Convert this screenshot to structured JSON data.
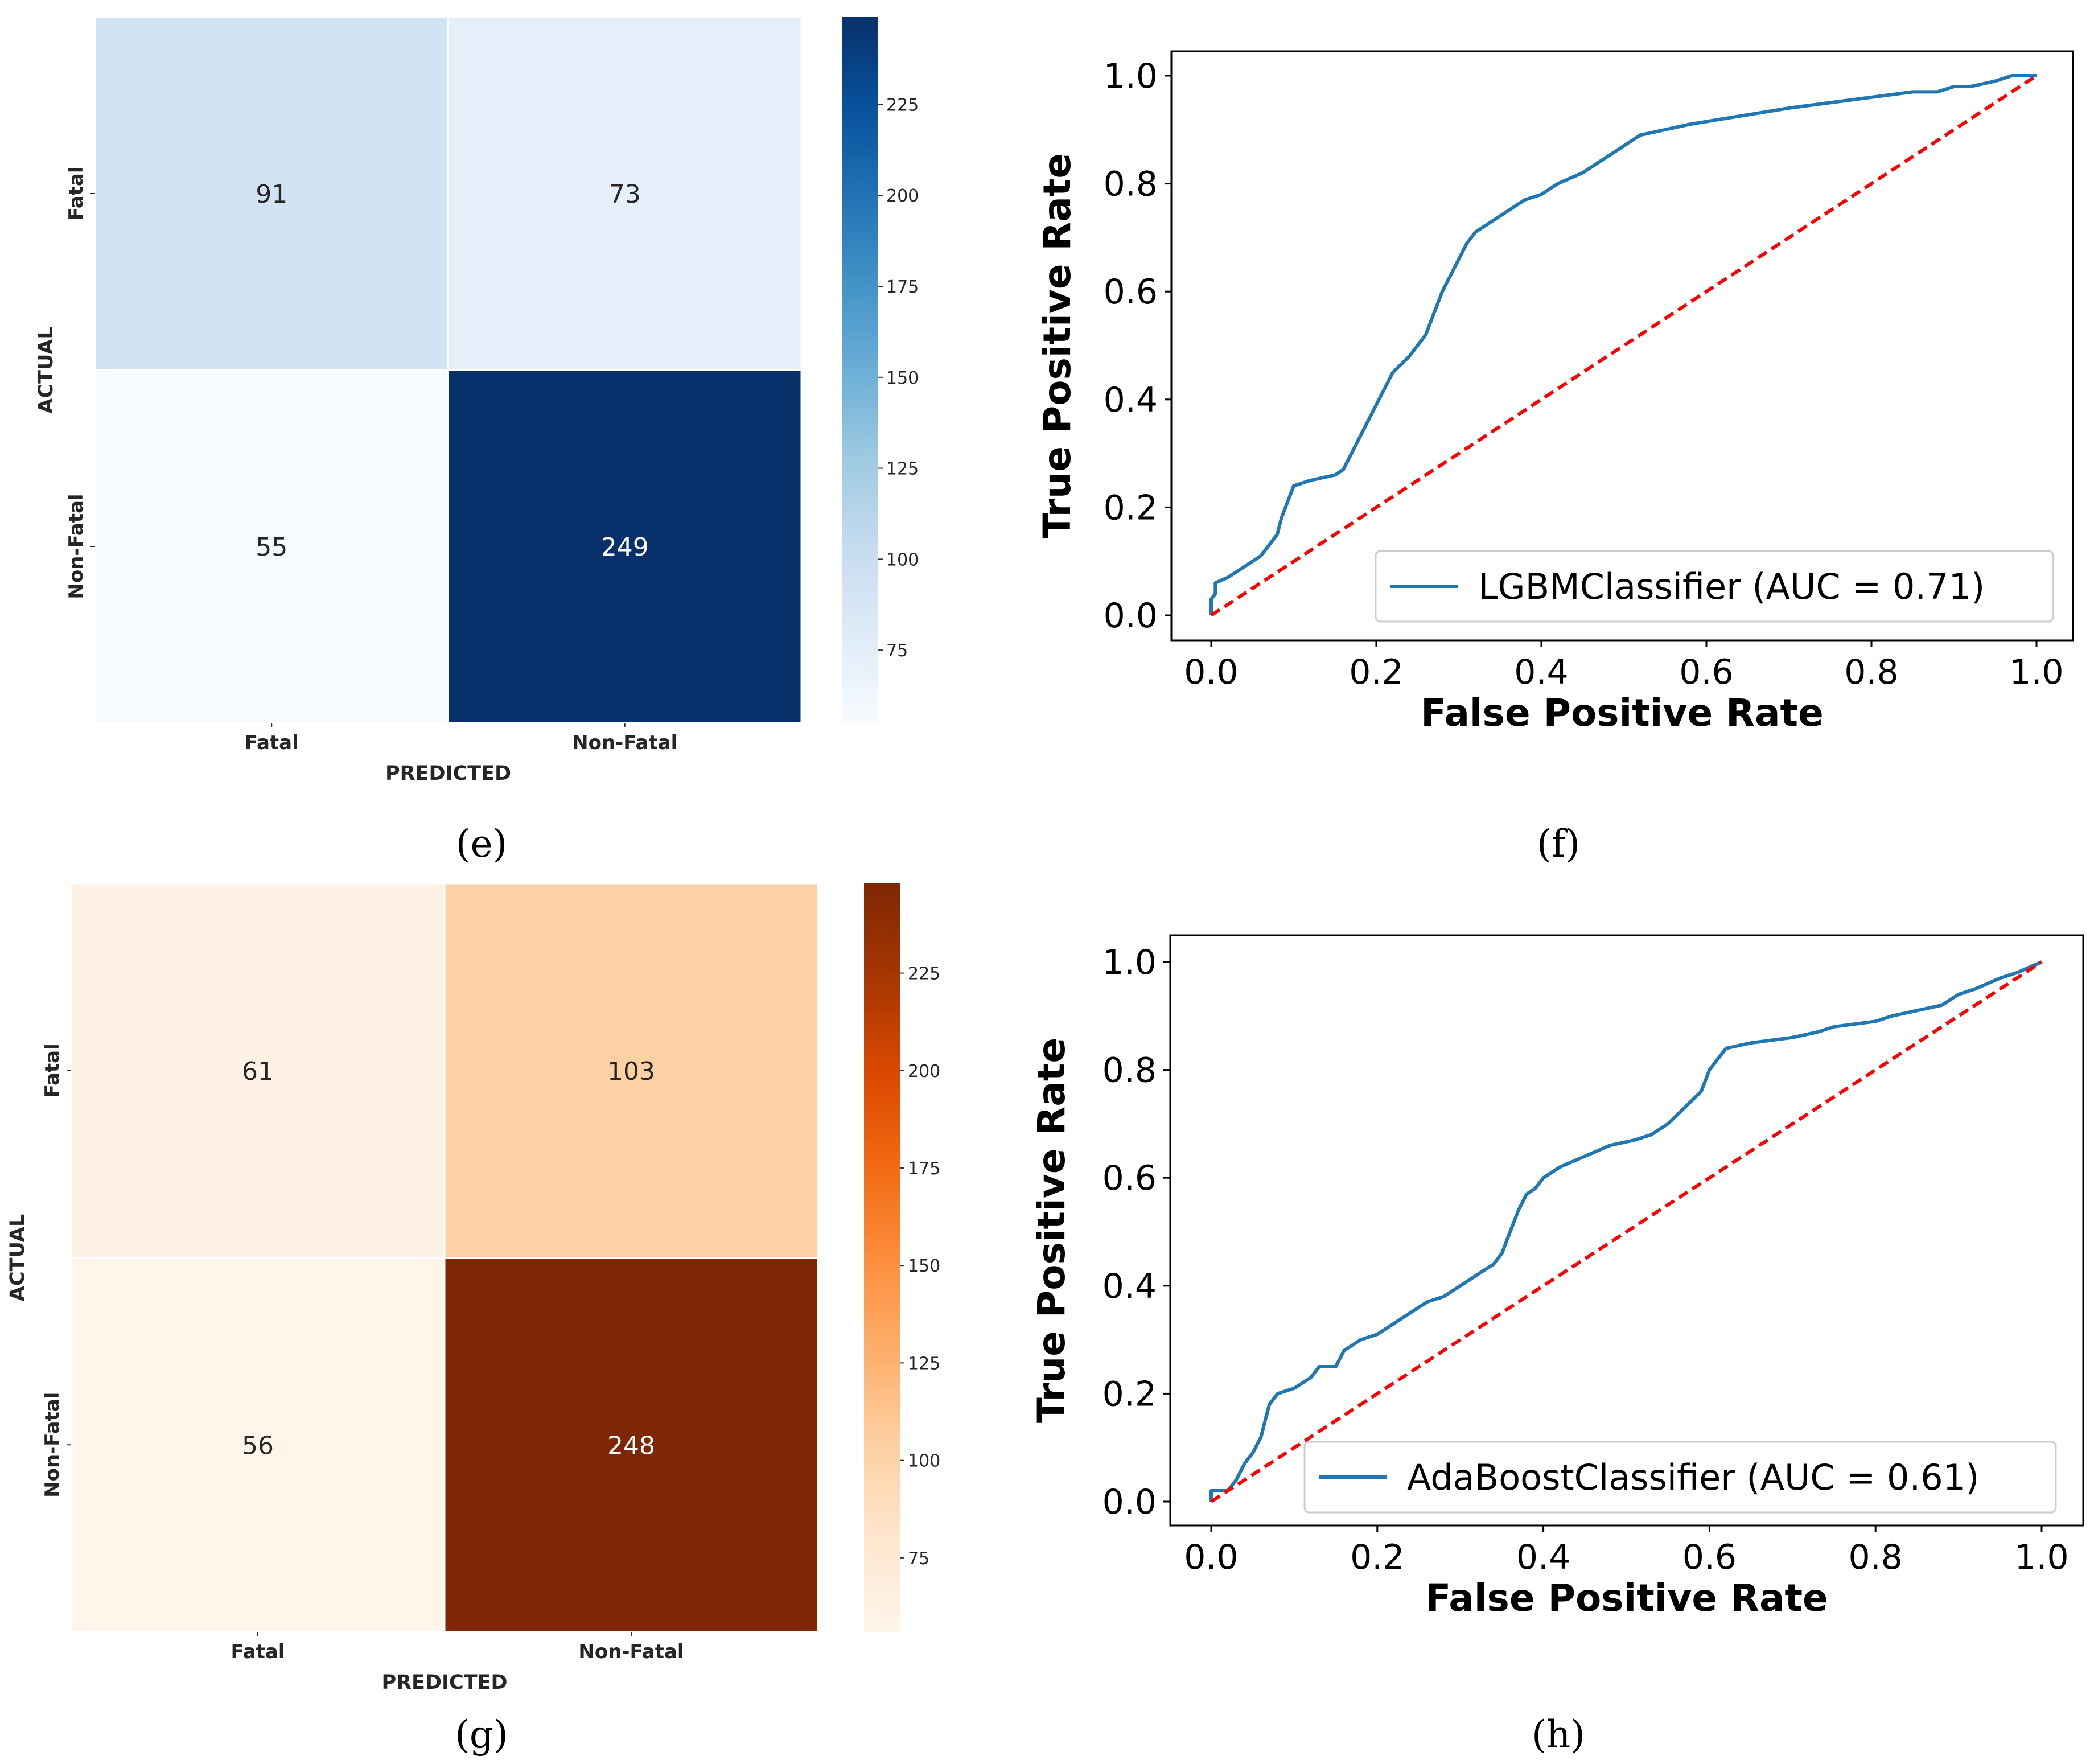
{
  "chart_data": [
    {
      "panel": "e",
      "type": "heatmap",
      "caption": "(e)",
      "colormap": "Blues",
      "colors": [
        "#f7fbff",
        "#deebf7",
        "#c6dbef",
        "#9ecae1",
        "#6baed6",
        "#4292c6",
        "#2171b5",
        "#08519c",
        "#08306b"
      ],
      "xlabel": "PREDICTED",
      "ylabel": "ACTUAL",
      "x_categories": [
        "Fatal",
        "Non-Fatal"
      ],
      "y_categories": [
        "Fatal",
        "Non-Fatal"
      ],
      "values": [
        [
          91,
          73
        ],
        [
          55,
          249
        ]
      ],
      "colorbar": {
        "min": 55,
        "max": 249,
        "ticks": [
          75,
          100,
          125,
          150,
          175,
          200,
          225
        ]
      }
    },
    {
      "panel": "f",
      "type": "line",
      "caption": "(f)",
      "xlabel": "False Positive Rate",
      "ylabel": "True Positive Rate",
      "xlim": [
        0.0,
        1.0
      ],
      "ylim": [
        0.0,
        1.0
      ],
      "xticks": [
        "0.0",
        "0.2",
        "0.4",
        "0.6",
        "0.8",
        "1.0"
      ],
      "yticks": [
        "0.0",
        "0.2",
        "0.4",
        "0.6",
        "0.8",
        "1.0"
      ],
      "legend": "LGBMClassifier (AUC = 0.71)",
      "legend_position": "lower-right",
      "series_color": "#1f77b4",
      "baseline_color": "#ff0000",
      "series": [
        {
          "name": "LGBMClassifier (AUC = 0.71)",
          "x": [
            0.0,
            0.0,
            0.005,
            0.005,
            0.02,
            0.03,
            0.04,
            0.05,
            0.06,
            0.07,
            0.08,
            0.085,
            0.09,
            0.1,
            0.12,
            0.15,
            0.16,
            0.17,
            0.18,
            0.19,
            0.2,
            0.21,
            0.22,
            0.24,
            0.26,
            0.27,
            0.28,
            0.29,
            0.3,
            0.31,
            0.32,
            0.33,
            0.34,
            0.36,
            0.38,
            0.4,
            0.42,
            0.45,
            0.47,
            0.49,
            0.5,
            0.52,
            0.55,
            0.58,
            0.62,
            0.66,
            0.7,
            0.75,
            0.8,
            0.85,
            0.88,
            0.9,
            0.92,
            0.95,
            0.97,
            1.0
          ],
          "y": [
            0.0,
            0.03,
            0.04,
            0.06,
            0.07,
            0.08,
            0.09,
            0.1,
            0.11,
            0.13,
            0.15,
            0.18,
            0.2,
            0.24,
            0.25,
            0.26,
            0.27,
            0.3,
            0.33,
            0.36,
            0.39,
            0.42,
            0.45,
            0.48,
            0.52,
            0.56,
            0.6,
            0.63,
            0.66,
            0.69,
            0.71,
            0.72,
            0.73,
            0.75,
            0.77,
            0.78,
            0.8,
            0.82,
            0.84,
            0.86,
            0.87,
            0.89,
            0.9,
            0.91,
            0.92,
            0.93,
            0.94,
            0.95,
            0.96,
            0.97,
            0.97,
            0.98,
            0.98,
            0.99,
            1.0,
            1.0
          ]
        },
        {
          "name": "baseline",
          "x": [
            0.0,
            1.0
          ],
          "y": [
            0.0,
            1.0
          ]
        }
      ]
    },
    {
      "panel": "g",
      "type": "heatmap",
      "caption": "(g)",
      "colormap": "Oranges",
      "colors": [
        "#fff5eb",
        "#fee6ce",
        "#fdd0a2",
        "#fdae6b",
        "#fd8d3c",
        "#f16913",
        "#d94801",
        "#a63603",
        "#7f2704"
      ],
      "xlabel": "PREDICTED",
      "ylabel": "ACTUAL",
      "x_categories": [
        "Fatal",
        "Non-Fatal"
      ],
      "y_categories": [
        "Fatal",
        "Non-Fatal"
      ],
      "values": [
        [
          61,
          103
        ],
        [
          56,
          248
        ]
      ],
      "colorbar": {
        "min": 56,
        "max": 248,
        "ticks": [
          75,
          100,
          125,
          150,
          175,
          200,
          225
        ]
      }
    },
    {
      "panel": "h",
      "type": "line",
      "caption": "(h)",
      "xlabel": "False Positive Rate",
      "ylabel": "True Positive Rate",
      "xlim": [
        0.0,
        1.0
      ],
      "ylim": [
        0.0,
        1.0
      ],
      "xticks": [
        "0.0",
        "0.2",
        "0.4",
        "0.6",
        "0.8",
        "1.0"
      ],
      "yticks": [
        "0.0",
        "0.2",
        "0.4",
        "0.6",
        "0.8",
        "1.0"
      ],
      "legend": "AdaBoostClassifier (AUC = 0.61)",
      "legend_position": "lower-right",
      "series_color": "#1f77b4",
      "baseline_color": "#ff0000",
      "series": [
        {
          "name": "AdaBoostClassifier (AUC = 0.61)",
          "x": [
            0.0,
            0.0,
            0.02,
            0.03,
            0.04,
            0.05,
            0.06,
            0.065,
            0.07,
            0.08,
            0.1,
            0.12,
            0.13,
            0.15,
            0.16,
            0.18,
            0.2,
            0.22,
            0.24,
            0.26,
            0.28,
            0.3,
            0.32,
            0.34,
            0.35,
            0.36,
            0.37,
            0.38,
            0.39,
            0.4,
            0.42,
            0.45,
            0.48,
            0.51,
            0.53,
            0.55,
            0.57,
            0.59,
            0.6,
            0.62,
            0.65,
            0.7,
            0.73,
            0.75,
            0.8,
            0.82,
            0.85,
            0.88,
            0.9,
            0.92,
            0.95,
            0.97,
            1.0
          ],
          "y": [
            0.0,
            0.02,
            0.02,
            0.04,
            0.07,
            0.09,
            0.12,
            0.15,
            0.18,
            0.2,
            0.21,
            0.23,
            0.25,
            0.25,
            0.28,
            0.3,
            0.31,
            0.33,
            0.35,
            0.37,
            0.38,
            0.4,
            0.42,
            0.44,
            0.46,
            0.5,
            0.54,
            0.57,
            0.58,
            0.6,
            0.62,
            0.64,
            0.66,
            0.67,
            0.68,
            0.7,
            0.73,
            0.76,
            0.8,
            0.84,
            0.85,
            0.86,
            0.87,
            0.88,
            0.89,
            0.9,
            0.91,
            0.92,
            0.94,
            0.95,
            0.97,
            0.98,
            1.0
          ]
        },
        {
          "name": "baseline",
          "x": [
            0.0,
            1.0
          ],
          "y": [
            0.0,
            1.0
          ]
        }
      ]
    }
  ]
}
